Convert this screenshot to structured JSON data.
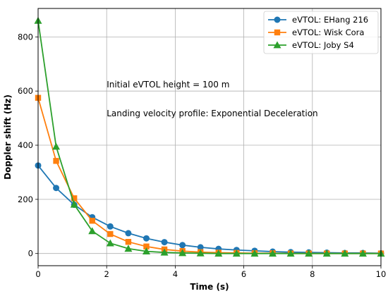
{
  "chart_data": {
    "type": "line",
    "xlabel": "Time (s)",
    "ylabel": "Doppler shift (Hz)",
    "xlim": [
      0,
      10
    ],
    "ylim": [
      -45,
      905
    ],
    "xticks": [
      0,
      2,
      4,
      6,
      8,
      10
    ],
    "yticks": [
      0,
      200,
      400,
      600,
      800
    ],
    "grid": true,
    "legend_position": "top-right",
    "annotations": [
      "Initial eVTOL height = 100 m",
      "Landing velocity profile: Exponential Deceleration"
    ],
    "x": [
      0,
      0.526,
      1.053,
      1.579,
      2.105,
      2.632,
      3.158,
      3.684,
      4.211,
      4.737,
      5.263,
      5.789,
      6.316,
      6.842,
      7.368,
      7.895,
      8.421,
      8.947,
      9.474,
      10
    ],
    "series": [
      {
        "name": "eVTOL: EHang 216",
        "color": "#1f77b4",
        "marker": "circle",
        "values": [
          325,
          242,
          180,
          134,
          100,
          75,
          56,
          42,
          31,
          23,
          17,
          13,
          10,
          7,
          5,
          4,
          3,
          2,
          2,
          1
        ]
      },
      {
        "name": "eVTOL: Wisk Cora",
        "color": "#ff7f0e",
        "marker": "square",
        "values": [
          575,
          342,
          204,
          121,
          72,
          43,
          26,
          15,
          9,
          5,
          3,
          2,
          1,
          1,
          0,
          0,
          0,
          0,
          0,
          0
        ]
      },
      {
        "name": "eVTOL: Joby S4",
        "color": "#2ca02c",
        "marker": "triangle",
        "values": [
          860,
          395,
          181,
          83,
          38,
          18,
          8,
          4,
          2,
          1,
          0,
          0,
          0,
          0,
          0,
          0,
          0,
          0,
          0,
          0
        ]
      }
    ]
  }
}
